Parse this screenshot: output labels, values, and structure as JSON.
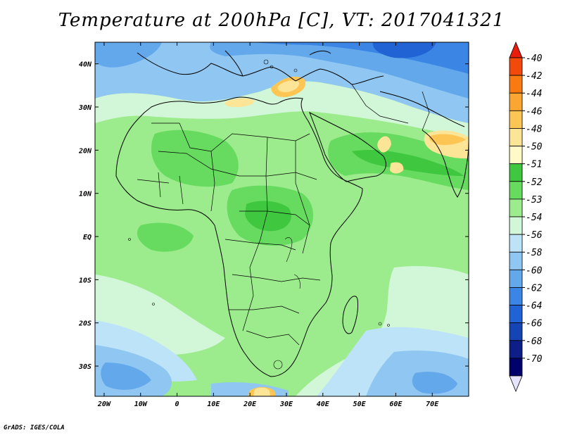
{
  "title": "Temperature at 200hPa [C], VT: 2017041321",
  "footer": "GrADS: IGES/COLA",
  "map": {
    "lon_labels": [
      "20W",
      "10W",
      "0",
      "10E",
      "20E",
      "30E",
      "40E",
      "50E",
      "60E",
      "70E"
    ],
    "lon_values": [
      -20,
      -10,
      0,
      10,
      20,
      30,
      40,
      50,
      60,
      70
    ],
    "lat_labels": [
      "40N",
      "30N",
      "20N",
      "10N",
      "EQ",
      "10S",
      "20S",
      "30S"
    ],
    "lat_values": [
      40,
      30,
      20,
      10,
      0,
      -10,
      -20,
      -30
    ],
    "lon_range": [
      -22.5,
      80
    ],
    "lat_range": [
      -37,
      45
    ]
  },
  "colorbar": {
    "labels": [
      "-40",
      "-42",
      "-44",
      "-46",
      "-48",
      "-50",
      "-51",
      "-52",
      "-53",
      "-54",
      "-56",
      "-58",
      "-60",
      "-62",
      "-64",
      "-66",
      "-68",
      "-70"
    ],
    "colors": [
      "#e81d0c",
      "#f24a0b",
      "#f87a10",
      "#fba533",
      "#fcc554",
      "#fde597",
      "#fffac8",
      "#3fc740",
      "#66db60",
      "#9ceb8c",
      "#d2f7d8",
      "#bde3f8",
      "#90c7f2",
      "#64a8ec",
      "#3b86e4",
      "#2163d4",
      "#1545b5",
      "#0d1e86",
      "#00006a",
      "#e6e4fc"
    ]
  }
}
